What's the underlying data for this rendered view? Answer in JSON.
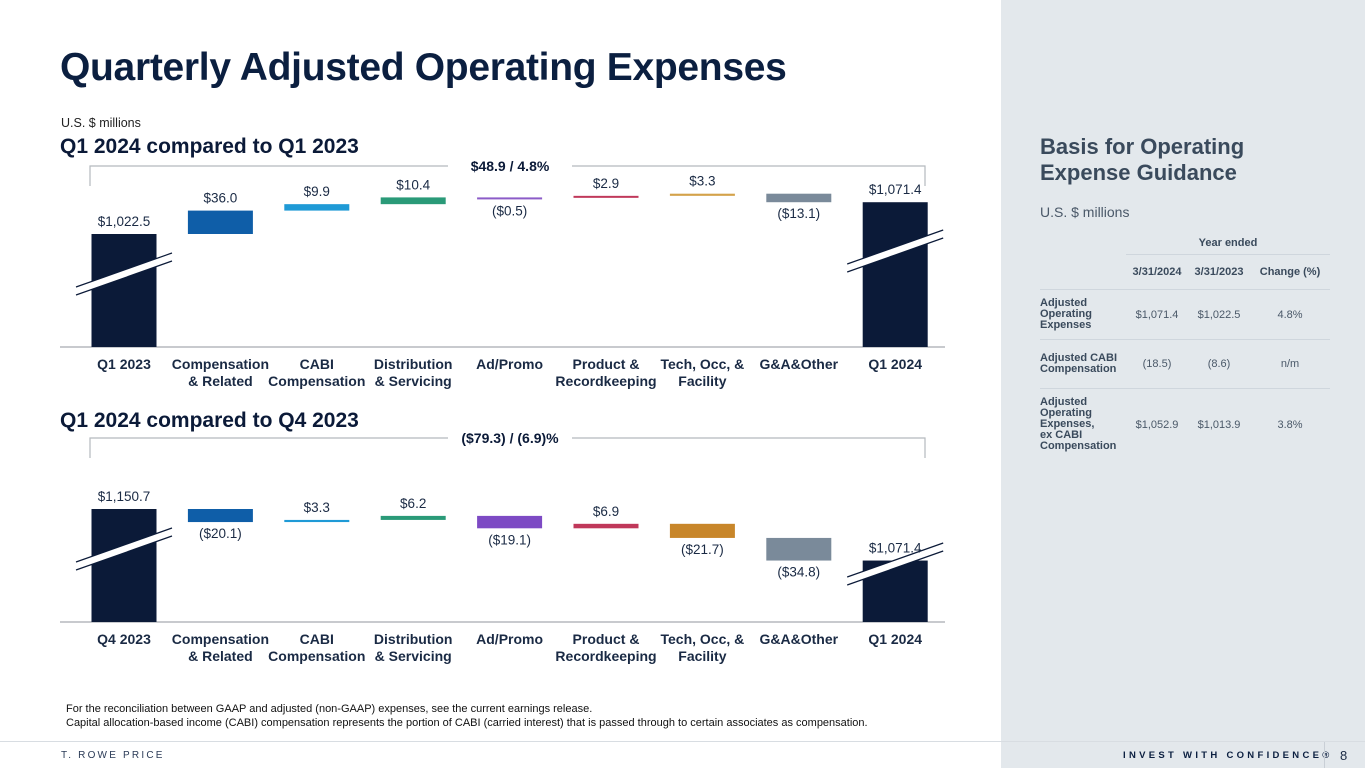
{
  "page": {
    "title": "Quarterly Adjusted Operating Expenses",
    "units": "U.S. $ millions",
    "footnotes": [
      "For the reconciliation between GAAP and adjusted (non-GAAP) expenses, see the current earnings release.",
      "Capital allocation-based income (CABI) compensation represents the portion of CABI (carried interest) that is passed through to certain associates as compensation."
    ],
    "brand": "T. ROWE PRICE",
    "tagline": "INVEST WITH CONFIDENCE®",
    "page_number": "8"
  },
  "guidance": {
    "title_line1": "Basis for Operating",
    "title_line2": "Expense Guidance",
    "units": "U.S. $ millions",
    "group_header": "Year ended",
    "columns": [
      "3/31/2024",
      "3/31/2023",
      "Change (%)"
    ],
    "rows": [
      {
        "label": [
          "Adjusted",
          "Operating",
          "Expenses"
        ],
        "values": [
          "$1,071.4",
          "$1,022.5",
          "4.8%"
        ]
      },
      {
        "label": [
          "Adjusted CABI",
          "Compensation"
        ],
        "values": [
          "(18.5)",
          "(8.6)",
          "n/m"
        ]
      },
      {
        "label": [
          "Adjusted",
          "Operating",
          "Expenses,",
          "ex CABI",
          "Compensation"
        ],
        "values": [
          "$1,052.9",
          "$1,013.9",
          "3.8%"
        ]
      }
    ]
  },
  "chart_data": [
    {
      "type": "bar",
      "subtype": "waterfall",
      "title": "Q1 2024 compared to Q1 2023",
      "ylabel": "U.S. $ millions",
      "axis_break": true,
      "total_change_label": "$48.9 / 4.8%",
      "categories": [
        [
          "Q1 2023"
        ],
        [
          "Compensation",
          "& Related"
        ],
        [
          "CABI",
          "Compensation"
        ],
        [
          "Distribution",
          "& Servicing"
        ],
        [
          "Ad/Promo"
        ],
        [
          "Product &",
          "Recordkeeping"
        ],
        [
          "Tech, Occ, &",
          "Facility"
        ],
        [
          "G&A&Other"
        ],
        [
          "Q1 2024"
        ]
      ],
      "values": [
        1022.5,
        36.0,
        9.9,
        10.4,
        -0.5,
        2.9,
        3.3,
        -13.1,
        1071.4
      ],
      "kinds": [
        "total",
        "delta",
        "delta",
        "delta",
        "delta",
        "delta",
        "delta",
        "delta",
        "total"
      ],
      "labels": [
        "$1,022.5",
        "$36.0",
        "$9.9",
        "$10.4",
        "($0.5)",
        "$2.9",
        "$3.3",
        "($13.1)",
        "$1,071.4"
      ],
      "colors": [
        "#0b1a38",
        "#0f5ea8",
        "#1f9ad6",
        "#2a9a78",
        "#8c5cc8",
        "#c0385a",
        "#d4a24a",
        "#7a8a9a",
        "#0b1a38"
      ]
    },
    {
      "type": "bar",
      "subtype": "waterfall",
      "title": "Q1 2024 compared to Q4 2023",
      "ylabel": "U.S. $ millions",
      "axis_break": true,
      "total_change_label": "($79.3) / (6.9)%",
      "categories": [
        [
          "Q4 2023"
        ],
        [
          "Compensation",
          "& Related"
        ],
        [
          "CABI",
          "Compensation"
        ],
        [
          "Distribution",
          "& Servicing"
        ],
        [
          "Ad/Promo"
        ],
        [
          "Product &",
          "Recordkeeping"
        ],
        [
          "Tech, Occ, &",
          "Facility"
        ],
        [
          "G&A&Other"
        ],
        [
          "Q1 2024"
        ]
      ],
      "values": [
        1150.7,
        -20.1,
        3.3,
        6.2,
        -19.1,
        6.9,
        -21.7,
        -34.8,
        1071.4
      ],
      "kinds": [
        "total",
        "delta",
        "delta",
        "delta",
        "delta",
        "delta",
        "delta",
        "delta",
        "total"
      ],
      "labels": [
        "$1,150.7",
        "($20.1)",
        "$3.3",
        "$6.2",
        "($19.1)",
        "$6.9",
        "($21.7)",
        "($34.8)",
        "$1,071.4"
      ],
      "colors": [
        "#0b1a38",
        "#0f5ea8",
        "#1f9ad6",
        "#2a9a78",
        "#7d4ac4",
        "#c0385a",
        "#c8862a",
        "#7a8a9a",
        "#0b1a38"
      ]
    }
  ]
}
